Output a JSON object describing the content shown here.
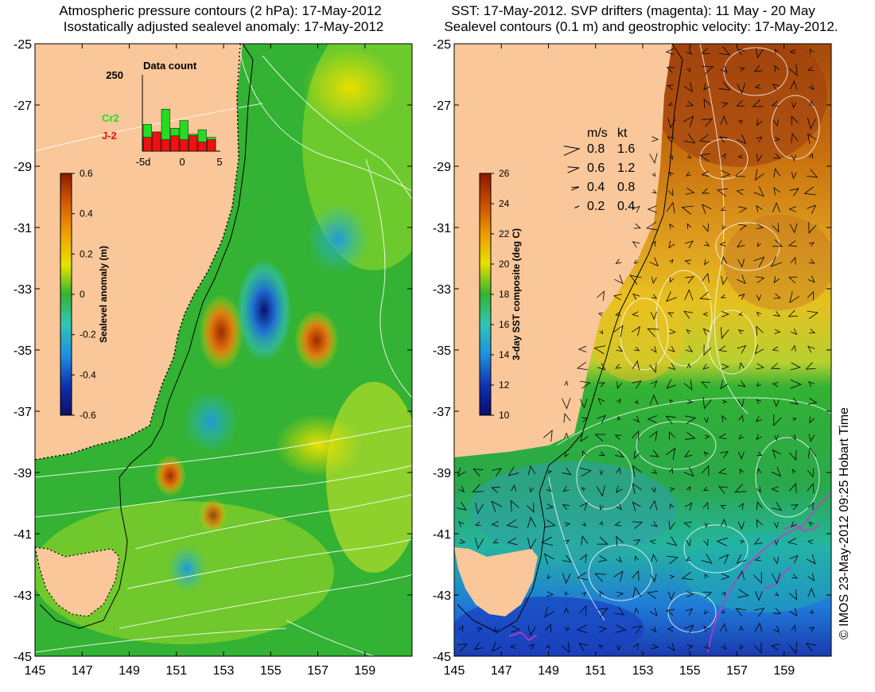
{
  "left_panel": {
    "title_line1": "Atmospheric pressure contours (2 hPa): 17-May-2012",
    "title_line2": "Isostatically adjusted sealevel anomaly: 17-May-2012",
    "colorbar": {
      "label": "Sealevel anomaly (m)",
      "ticks": [
        "0.6",
        "0.4",
        "0.2",
        "0",
        "-0.2",
        "-0.4",
        "-0.6"
      ]
    },
    "data_count": {
      "title": "Data count",
      "ymax_label": "250",
      "x_ticks": [
        "-5d",
        "0",
        "5"
      ],
      "legend": [
        {
          "label": "Cr2",
          "color": "#22dd22"
        },
        {
          "label": "J-2",
          "color": "#ee1111"
        }
      ],
      "green_values": [
        0.35,
        0.25,
        0.55,
        0.3,
        0.4,
        0.22,
        0.28,
        0.18
      ],
      "red_values": [
        0.18,
        0.25,
        0.15,
        0.2,
        0.15,
        0.2,
        0.12,
        0.15
      ]
    }
  },
  "right_panel": {
    "title_line1": "SST: 17-May-2012. SVP drifters (magenta): 11 May - 20 May",
    "title_line2": "Sealevel contours (0.1 m) and geostrophic velocity: 17-May-2012.",
    "colorbar": {
      "label": "3-day SST composite (deg C)",
      "ticks": [
        "26",
        "24",
        "22",
        "20",
        "18",
        "16",
        "14",
        "12",
        "10"
      ]
    },
    "velocity_legend": {
      "header_ms": "m/s",
      "header_kt": "kt",
      "rows": [
        {
          "ms": "0.8",
          "kt": "1.6"
        },
        {
          "ms": "0.6",
          "kt": "1.2"
        },
        {
          "ms": "0.4",
          "kt": "0.8"
        },
        {
          "ms": "0.2",
          "kt": "0.4"
        }
      ]
    }
  },
  "axes": {
    "lat_ticks": [
      "-25",
      "-27",
      "-29",
      "-31",
      "-33",
      "-35",
      "-37",
      "-39",
      "-41",
      "-43",
      "-45"
    ],
    "lon_ticks": [
      "145",
      "147",
      "149",
      "151",
      "153",
      "155",
      "157",
      "159"
    ]
  },
  "credit": "© IMOS 23-May-2012 09:25 Hobart Time",
  "colors": {
    "land": "#f9c79a",
    "ocean_green": "#33b233",
    "warm": "#e07a10",
    "cool": "#1e6fd0",
    "drifter": "#cc33cc"
  }
}
